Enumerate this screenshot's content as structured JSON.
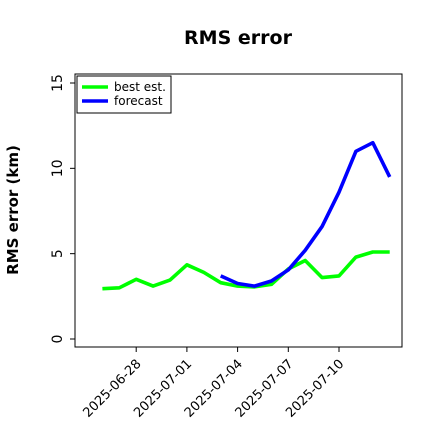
{
  "chart_data": {
    "type": "line",
    "title": "RMS error",
    "xlabel": "",
    "ylabel": "RMS error (km)",
    "ylim": [
      0,
      15
    ],
    "yticks": [
      0,
      5,
      10,
      15
    ],
    "xlim": [
      "2025-06-25",
      "2025-07-14"
    ],
    "xticks": [
      "2025-06-28",
      "2025-07-01",
      "2025-07-04",
      "2025-07-07",
      "2025-07-10"
    ],
    "grid": false,
    "legend_position": "top-left",
    "series": [
      {
        "name": "best est.",
        "color": "#00ff00",
        "x": [
          "2025-06-26",
          "2025-06-27",
          "2025-06-28",
          "2025-06-29",
          "2025-06-30",
          "2025-07-01",
          "2025-07-02",
          "2025-07-03",
          "2025-07-04",
          "2025-07-05",
          "2025-07-06",
          "2025-07-07",
          "2025-07-08",
          "2025-07-09",
          "2025-07-10",
          "2025-07-11",
          "2025-07-12",
          "2025-07-13"
        ],
        "y": [
          2.95,
          3.0,
          3.5,
          3.1,
          3.45,
          4.35,
          3.9,
          3.3,
          3.1,
          3.05,
          3.2,
          4.1,
          4.6,
          3.6,
          3.7,
          4.8,
          5.1,
          5.1
        ]
      },
      {
        "name": "forecast",
        "color": "#0000ff",
        "x": [
          "2025-07-03",
          "2025-07-04",
          "2025-07-05",
          "2025-07-06",
          "2025-07-07",
          "2025-07-08",
          "2025-07-09",
          "2025-07-10",
          "2025-07-11",
          "2025-07-12",
          "2025-07-13"
        ],
        "y": [
          3.7,
          3.25,
          3.1,
          3.4,
          4.05,
          5.2,
          6.6,
          8.6,
          11.0,
          11.5,
          9.5
        ]
      }
    ]
  }
}
